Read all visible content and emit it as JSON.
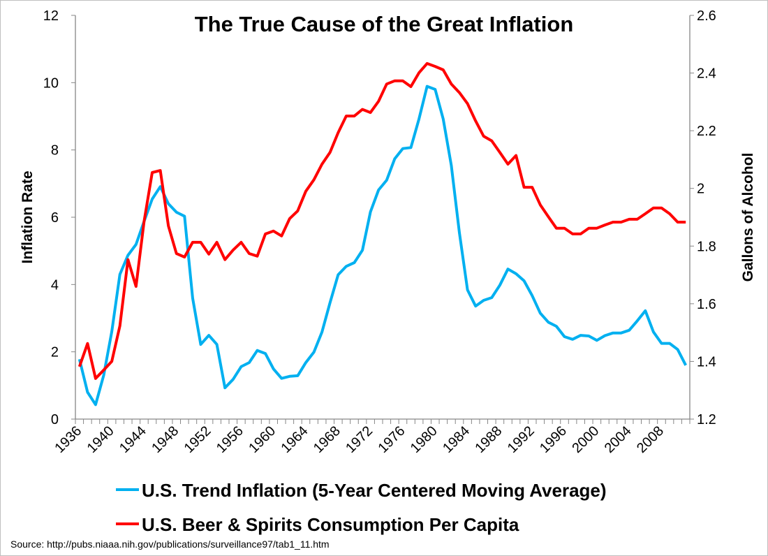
{
  "chart_data": {
    "type": "line",
    "title": "The True Cause of the Great Inflation",
    "ylabel": "Inflation Rate",
    "y2label": "Gallons of Alcohol",
    "ylim": [
      0,
      12
    ],
    "y2lim": [
      1.2,
      2.6
    ],
    "yticks": [
      "0",
      "2",
      "4",
      "6",
      "8",
      "10",
      "12"
    ],
    "y2ticks": [
      "1.2",
      "1.4",
      "1.6",
      "1.8",
      "2",
      "2.2",
      "2.4",
      "2.6"
    ],
    "x_start": 1936,
    "x_end": 2011,
    "xtick_labels": [
      "1936",
      "1940",
      "1944",
      "1948",
      "1952",
      "1956",
      "1960",
      "1964",
      "1968",
      "1972",
      "1976",
      "1980",
      "1984",
      "1988",
      "1992",
      "1996",
      "2000",
      "2004",
      "2008"
    ],
    "grid": false,
    "legend_placement": "bottom",
    "series": [
      {
        "name": "U.S. Trend Inflation (5-Year Centered Moving Average)",
        "axis": "left",
        "color": "#00b0f0",
        "values": [
          1.78,
          0.8,
          0.43,
          1.3,
          2.6,
          4.3,
          4.87,
          5.19,
          5.88,
          6.54,
          6.91,
          6.4,
          6.15,
          6.03,
          3.6,
          2.22,
          2.49,
          2.22,
          0.93,
          1.18,
          1.56,
          1.68,
          2.04,
          1.95,
          1.49,
          1.21,
          1.27,
          1.29,
          1.68,
          1.99,
          2.59,
          3.46,
          4.29,
          4.54,
          4.65,
          5.02,
          6.16,
          6.81,
          7.1,
          7.74,
          8.04,
          8.07,
          8.92,
          9.89,
          9.8,
          8.92,
          7.54,
          5.54,
          3.84,
          3.36,
          3.53,
          3.61,
          3.98,
          4.46,
          4.32,
          4.11,
          3.67,
          3.15,
          2.88,
          2.76,
          2.45,
          2.37,
          2.49,
          2.47,
          2.34,
          2.48,
          2.56,
          2.56,
          2.64,
          2.92,
          3.22,
          2.59,
          2.25,
          2.25,
          2.07,
          1.6
        ]
      },
      {
        "name": "U.S. Beer & Spirits Consumption Per Capita",
        "axis": "right",
        "color": "#ff0000",
        "values": [
          1.382,
          1.462,
          1.341,
          1.37,
          1.4,
          1.523,
          1.753,
          1.66,
          1.886,
          2.055,
          2.062,
          1.87,
          1.774,
          1.762,
          1.813,
          1.813,
          1.772,
          1.813,
          1.753,
          1.786,
          1.813,
          1.774,
          1.765,
          1.842,
          1.852,
          1.835,
          1.895,
          1.922,
          1.99,
          2.03,
          2.084,
          2.125,
          2.193,
          2.251,
          2.251,
          2.274,
          2.263,
          2.302,
          2.362,
          2.373,
          2.373,
          2.353,
          2.401,
          2.433,
          2.423,
          2.411,
          2.362,
          2.332,
          2.294,
          2.234,
          2.181,
          2.165,
          2.125,
          2.084,
          2.114,
          2.004,
          2.004,
          1.943,
          1.902,
          1.862,
          1.862,
          1.842,
          1.842,
          1.862,
          1.862,
          1.873,
          1.883,
          1.883,
          1.893,
          1.893,
          1.912,
          1.932,
          1.932,
          1.912,
          1.883,
          1.883
        ]
      }
    ],
    "source": "Source: http://pubs.niaaa.nih.gov/publications/surveillance97/tab1_11.htm"
  }
}
